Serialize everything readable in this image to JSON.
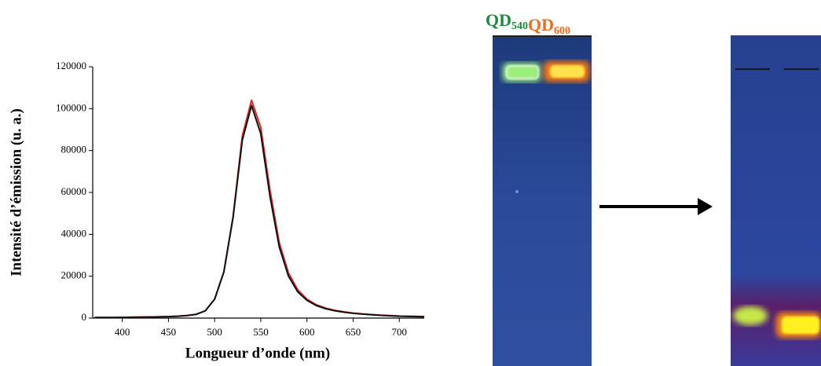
{
  "chart_data": {
    "type": "line",
    "x_label": "Longueur d’onde (nm)",
    "y_label": "Intensité d’émission (u. a.)",
    "x": [
      370,
      380,
      390,
      400,
      410,
      420,
      430,
      440,
      450,
      460,
      470,
      480,
      490,
      500,
      510,
      520,
      530,
      540,
      550,
      560,
      570,
      580,
      590,
      600,
      610,
      620,
      630,
      640,
      650,
      660,
      670,
      680,
      690,
      700,
      710,
      720,
      727
    ],
    "series": [
      {
        "color": "#e02020",
        "values": [
          300,
          300,
          300,
          350,
          400,
          450,
          500,
          600,
          700,
          900,
          1200,
          1800,
          3500,
          9000,
          22000,
          48500,
          87000,
          104000,
          91000,
          61000,
          36000,
          21500,
          13500,
          9000,
          6400,
          4800,
          3700,
          3000,
          2400,
          2000,
          1700,
          1400,
          1200,
          1000,
          900,
          800,
          700
        ]
      },
      {
        "color": "#111111",
        "values": [
          300,
          300,
          300,
          350,
          400,
          450,
          500,
          600,
          700,
          900,
          1200,
          1800,
          3500,
          9000,
          22000,
          48000,
          85000,
          101500,
          88000,
          58000,
          34000,
          20000,
          12500,
          8500,
          6000,
          4500,
          3500,
          2800,
          2300,
          1900,
          1600,
          1300,
          1100,
          900,
          800,
          700,
          600
        ]
      }
    ],
    "xlim": [
      368,
      727
    ],
    "ylim": [
      0,
      120000
    ],
    "xticks": [
      400,
      450,
      500,
      550,
      600,
      650,
      700
    ],
    "yticks": [
      0,
      20000,
      40000,
      60000,
      80000,
      100000,
      120000
    ]
  },
  "gel_labels": [
    {
      "text": "QD",
      "sub": "540",
      "color": "#1e8a3e"
    },
    {
      "text": "QD",
      "sub": "600",
      "color": "#ee6a1f"
    }
  ]
}
